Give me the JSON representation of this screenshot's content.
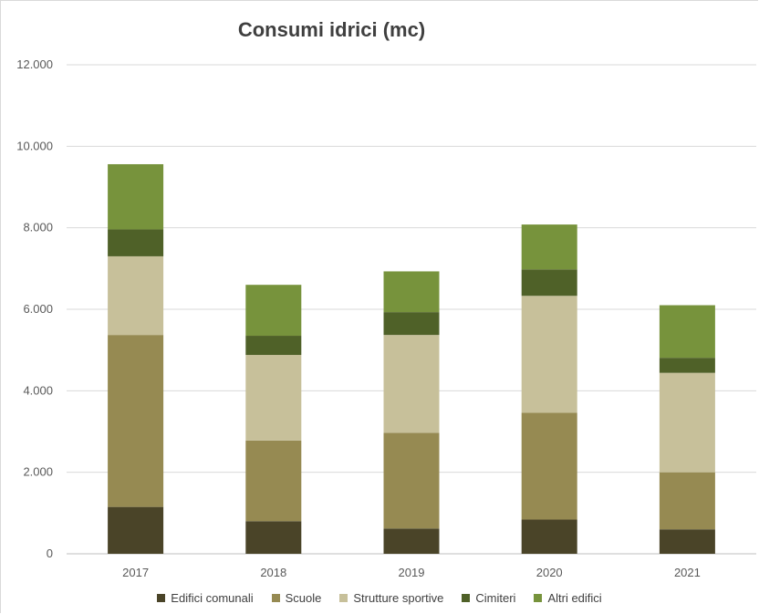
{
  "chart_data": {
    "type": "bar",
    "stacked": true,
    "title": "Consumi idrici  (mc)",
    "categories": [
      "2017",
      "2018",
      "2019",
      "2020",
      "2021"
    ],
    "ylim": [
      0,
      12000
    ],
    "yticks": [
      0,
      2000,
      4000,
      6000,
      8000,
      10000,
      12000
    ],
    "ytick_labels": [
      "0",
      "2.000",
      "4.000",
      "6.000",
      "8.000",
      "10.000",
      "12.000"
    ],
    "grid": true,
    "legend_position": "bottom",
    "series": [
      {
        "name": "Edifici comunali",
        "color": "#4a4428",
        "values": [
          1150,
          800,
          620,
          840,
          600
        ]
      },
      {
        "name": "Scuole",
        "color": "#968a52",
        "values": [
          4220,
          1980,
          2350,
          2620,
          1400
        ]
      },
      {
        "name": "Strutture sportive",
        "color": "#c7c09a",
        "values": [
          1930,
          2100,
          2400,
          2870,
          2440
        ]
      },
      {
        "name": "Cimiteri",
        "color": "#4f6128",
        "values": [
          660,
          470,
          560,
          650,
          370
        ]
      },
      {
        "name": "Altri edifici",
        "color": "#77933c",
        "values": [
          1600,
          1250,
          1000,
          1100,
          1290
        ]
      }
    ]
  }
}
